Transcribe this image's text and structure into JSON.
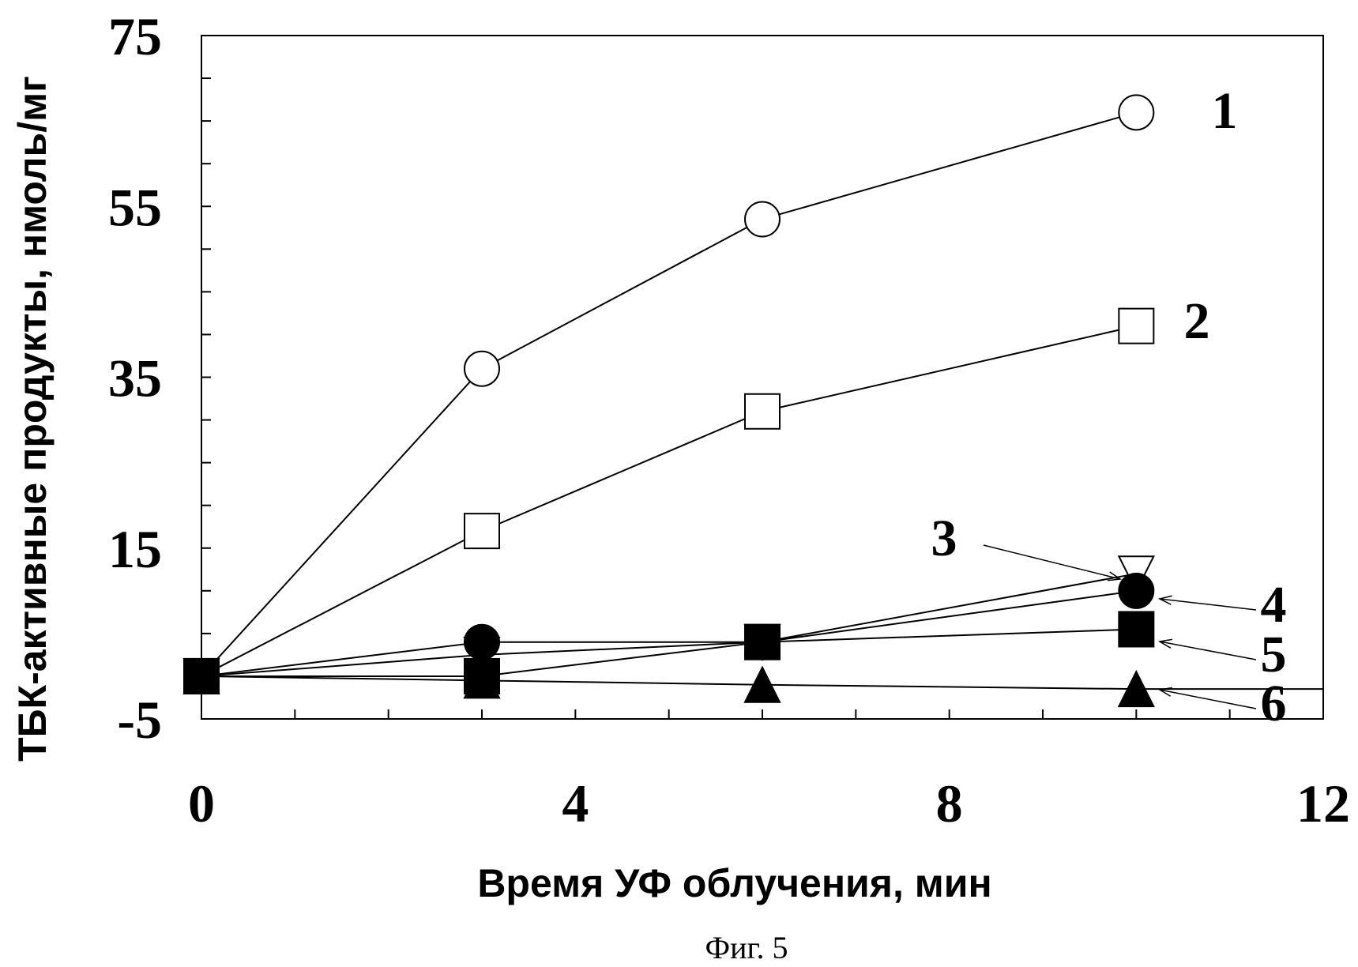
{
  "chart_data": {
    "type": "line",
    "title": "",
    "xlabel": "Время УФ облучения, мин",
    "ylabel": "ТБК-активные продукты, нмоль/мг",
    "xlim": [
      0,
      12
    ],
    "ylim": [
      -5,
      75
    ],
    "xticks": [
      "0",
      "4",
      "8",
      "12"
    ],
    "yticks": [
      "-5",
      "15",
      "35",
      "55",
      "75"
    ],
    "grid": false,
    "legend": "none",
    "caption": "Фиг. 5",
    "series": [
      {
        "name": "1",
        "marker": "circle-open",
        "x": [
          0,
          3,
          6,
          10
        ],
        "y": [
          0,
          36,
          53.5,
          66
        ]
      },
      {
        "name": "2",
        "marker": "square-open",
        "x": [
          0,
          3,
          6,
          10
        ],
        "y": [
          0,
          17,
          31,
          41
        ]
      },
      {
        "name": "3",
        "marker": "triangle-down-open",
        "x": [
          0,
          3,
          6,
          10
        ],
        "y": [
          0,
          2.5,
          4,
          12
        ]
      },
      {
        "name": "4",
        "marker": "circle-filled",
        "x": [
          0,
          3,
          6,
          10
        ],
        "y": [
          0,
          4,
          4,
          10
        ]
      },
      {
        "name": "5",
        "marker": "square-filled",
        "x": [
          0,
          3,
          6,
          10
        ],
        "y": [
          0,
          0,
          4,
          5.5
        ]
      },
      {
        "name": "6",
        "marker": "triangle-up-filled",
        "x": [
          0,
          3,
          6,
          10
        ],
        "y": [
          0,
          -0.5,
          -1,
          -1.5
        ]
      }
    ]
  }
}
